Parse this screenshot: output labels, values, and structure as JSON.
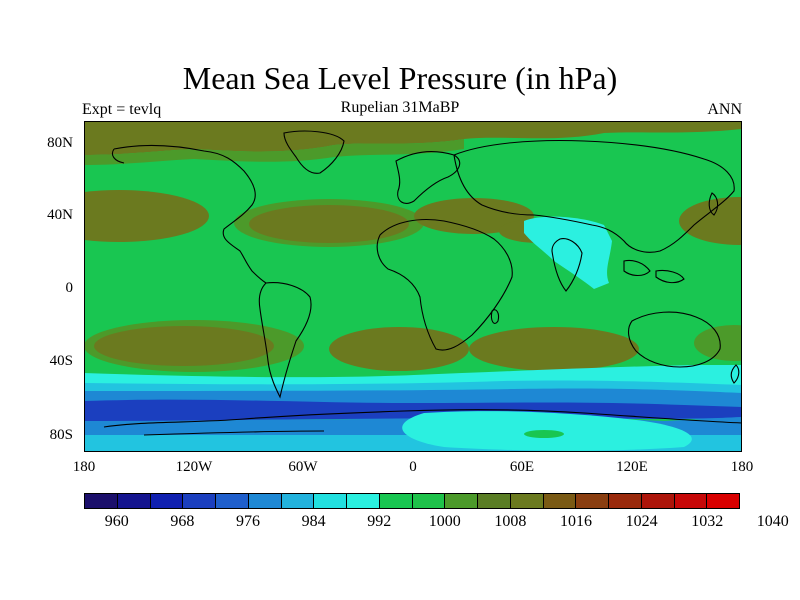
{
  "title": "Mean Sea Level Pressure (in hPa)",
  "subtitle": "Rupelian  31MaBP",
  "left_label": "Expt = tevlq",
  "right_label": "ANN",
  "lat_labels": [
    "80N",
    "40N",
    "0",
    "40S",
    "80S"
  ],
  "lon_labels": [
    "180",
    "120W",
    "60W",
    "0",
    "60E",
    "120E",
    "180"
  ],
  "colorbar": {
    "colors": [
      "#1b0f6b",
      "#14148f",
      "#1020b0",
      "#1b3fbf",
      "#1f5fcc",
      "#1e88d4",
      "#22b2dd",
      "#22e0e0",
      "#2bf0e0",
      "#19c651",
      "#1ec24a",
      "#4c9a2a",
      "#5a7d24",
      "#6b7a1f",
      "#7a5a14",
      "#8a3e10",
      "#9a2a0c",
      "#ad150a",
      "#c70808",
      "#d90000"
    ],
    "labels": [
      "960",
      "968",
      "976",
      "984",
      "992",
      "1000",
      "1008",
      "1016",
      "1024",
      "1032",
      "1040"
    ]
  },
  "map_colors": {
    "background": "#19c651",
    "high": "#6b7a1f",
    "high_mid": "#4c9a2a",
    "low_cyan": "#2bf0e0",
    "low_light": "#22c4e0",
    "low_mid": "#1e88d4",
    "low_deep": "#1b3fbf"
  }
}
